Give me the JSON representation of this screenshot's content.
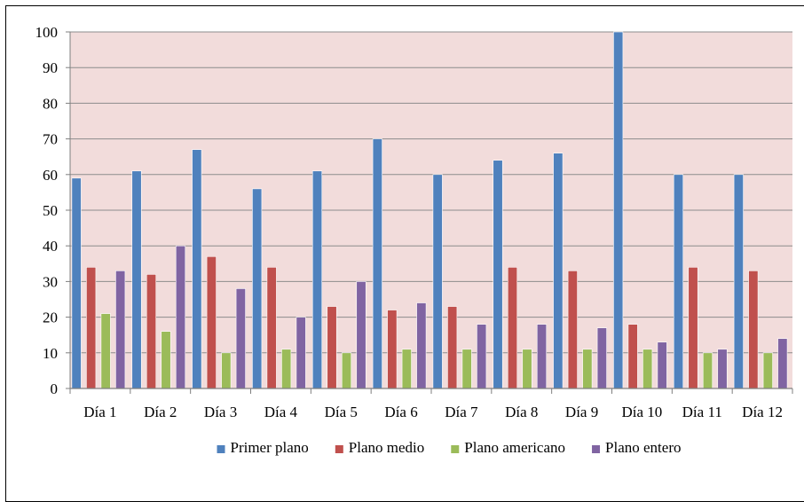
{
  "colors": {
    "plot_background": "#f2dcdb",
    "gridline": "#8c8c8c",
    "axis": "#7f7f7f"
  },
  "chart_data": {
    "type": "bar",
    "categories": [
      "Día 1",
      "Día 2",
      "Día 3",
      "Día 4",
      "Día 5",
      "Día 6",
      "Día 7",
      "Día 8",
      "Día 9",
      "Día 10",
      "Día 11",
      "Día 12"
    ],
    "series": [
      {
        "name": "Primer plano",
        "color": "#4f81bd",
        "values": [
          59,
          61,
          67,
          56,
          61,
          70,
          60,
          64,
          66,
          100,
          60,
          60
        ]
      },
      {
        "name": "Plano medio",
        "color": "#c0504d",
        "values": [
          34,
          32,
          37,
          34,
          23,
          22,
          23,
          34,
          33,
          18,
          34,
          33
        ]
      },
      {
        "name": "Plano americano",
        "color": "#9bbb59",
        "values": [
          21,
          16,
          10,
          11,
          10,
          11,
          11,
          11,
          11,
          11,
          10,
          10
        ]
      },
      {
        "name": "Plano entero",
        "color": "#8064a2",
        "values": [
          33,
          40,
          28,
          20,
          30,
          24,
          18,
          18,
          17,
          13,
          11,
          14
        ]
      }
    ],
    "y_ticks": [
      "0",
      "10",
      "20",
      "30",
      "40",
      "50",
      "60",
      "70",
      "80",
      "90",
      "100"
    ],
    "ylim": [
      0,
      100
    ],
    "grid": true,
    "legend_position": "bottom"
  }
}
